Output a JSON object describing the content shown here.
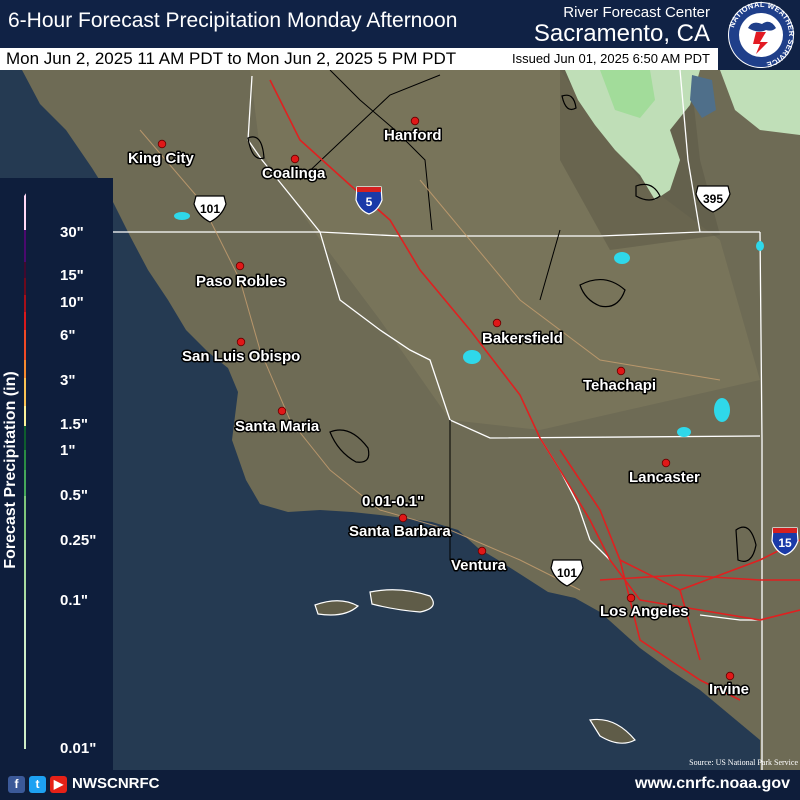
{
  "header": {
    "title": "6-Hour Forecast Precipitation Monday Afternoon",
    "valid_range": "Mon Jun 2, 2025 11 AM PDT to Mon Jun 2, 2025 5 PM PDT",
    "issued": "Issued Jun 01, 2025 6:50 AM PDT",
    "center_label": "River Forecast Center",
    "center_city": "Sacramento, CA",
    "logo_text": "NATIONAL WEATHER SERVICE",
    "logo_icon": "nws-logo-icon"
  },
  "map": {
    "background": "#6e6b55",
    "ocean": "#253a52",
    "rain_light": "#c9ecc3",
    "rain_mid": "#9fdb97",
    "cities": [
      {
        "name": "King City"
      },
      {
        "name": "Coalinga"
      },
      {
        "name": "Hanford"
      },
      {
        "name": "Paso Robles"
      },
      {
        "name": "San Luis Obispo"
      },
      {
        "name": "Santa Maria"
      },
      {
        "name": "Bakersfield"
      },
      {
        "name": "Tehachapi"
      },
      {
        "name": "Lancaster"
      },
      {
        "name": "Santa Barbara"
      },
      {
        "name": "Ventura"
      },
      {
        "name": "Los Angeles"
      },
      {
        "name": "Irvine"
      }
    ],
    "annotation": "0.01-0.1\"",
    "highways": [
      {
        "label": "101",
        "type": "us"
      },
      {
        "label": "5",
        "type": "interstate"
      },
      {
        "label": "395",
        "type": "us"
      },
      {
        "label": "101",
        "type": "us"
      },
      {
        "label": "15",
        "type": "interstate"
      }
    ],
    "source": "Source: US National Park Service"
  },
  "legend": {
    "title": "Forecast Precipitation (in)",
    "ticks": [
      "30\"",
      "15\"",
      "10\"",
      "6\"",
      "3\"",
      "1.5\"",
      "1\"",
      "0.5\"",
      "0.25\"",
      "0.1\"",
      "0.01\""
    ],
    "colors": [
      "#ffd9f6",
      "#4a0a6e",
      "#3f0a2f",
      "#6b0a1c",
      "#a6101a",
      "#d8191c",
      "#f04a26",
      "#f58a2f",
      "#f9c354",
      "#fbf199",
      "#0e5d2e",
      "#2a8d44",
      "#45a85b",
      "#7ec77b",
      "#a8dba0",
      "#cdecc6"
    ]
  },
  "footer": {
    "handle": "NWSCNRFC",
    "site": "www.cnrfc.noaa.gov",
    "social_icons": [
      "facebook-icon",
      "twitter-icon",
      "youtube-icon"
    ]
  }
}
